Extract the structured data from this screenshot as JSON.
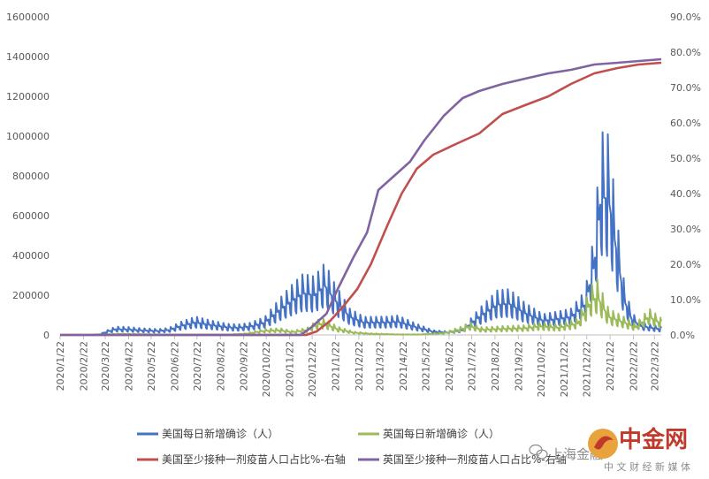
{
  "chart_data": {
    "type": "line",
    "title": "",
    "xlabel": "",
    "ylabel": "",
    "x_ticks": [
      "2020/1/22",
      "2020/2/22",
      "2020/3/22",
      "2020/4/22",
      "2020/5/22",
      "2020/6/22",
      "2020/7/22",
      "2020/8/22",
      "2020/9/22",
      "2020/10/22",
      "2020/11/22",
      "2020/12/22",
      "2021/1/22",
      "2021/2/22",
      "2021/3/22",
      "2021/4/22",
      "2021/5/22",
      "2021/6/22",
      "2021/7/22",
      "2021/8/22",
      "2021/9/22",
      "2021/10/22",
      "2021/11/22",
      "2021/12/22",
      "2022/1/22",
      "2022/2/22",
      "2022/3/22"
    ],
    "x_range": [
      "2020-01-22",
      "2022-03-31"
    ],
    "y_left": {
      "min": 0,
      "max": 1600000,
      "ticks": [
        "0",
        "200000",
        "400000",
        "600000",
        "800000",
        "1000000",
        "1200000",
        "1400000",
        "1600000"
      ]
    },
    "y_right": {
      "min": 0,
      "max": 90,
      "unit": "%",
      "ticks": [
        "0.0%",
        "10.0%",
        "20.0%",
        "30.0%",
        "40.0%",
        "50.0%",
        "60.0%",
        "70.0%",
        "80.0%",
        "90.0%"
      ]
    },
    "grid": false,
    "legend_position": "bottom",
    "series": [
      {
        "name": "美国每日新增确诊（人）",
        "axis": "left",
        "color": "#4472C4",
        "oscillation": "weekly",
        "points": [
          [
            "2020-01-22",
            0
          ],
          [
            "2020-03-01",
            0
          ],
          [
            "2020-03-15",
            3000
          ],
          [
            "2020-03-25",
            18000
          ],
          [
            "2020-04-05",
            30000
          ],
          [
            "2020-04-20",
            29000
          ],
          [
            "2020-05-10",
            24000
          ],
          [
            "2020-06-01",
            21000
          ],
          [
            "2020-06-15",
            26000
          ],
          [
            "2020-07-01",
            48000
          ],
          [
            "2020-07-20",
            66000
          ],
          [
            "2020-08-10",
            52000
          ],
          [
            "2020-09-01",
            40000
          ],
          [
            "2020-09-15",
            38000
          ],
          [
            "2020-10-01",
            44000
          ],
          [
            "2020-10-20",
            65000
          ],
          [
            "2020-11-10",
            135000
          ],
          [
            "2020-11-25",
            180000
          ],
          [
            "2020-12-10",
            220000
          ],
          [
            "2020-12-25",
            210000
          ],
          [
            "2021-01-08",
            260000
          ],
          [
            "2021-01-20",
            190000
          ],
          [
            "2021-02-10",
            95000
          ],
          [
            "2021-03-01",
            65000
          ],
          [
            "2021-04-01",
            66000
          ],
          [
            "2021-04-15",
            70000
          ],
          [
            "2021-05-10",
            40000
          ],
          [
            "2021-06-01",
            17000
          ],
          [
            "2021-06-20",
            13000
          ],
          [
            "2021-07-10",
            25000
          ],
          [
            "2021-08-01",
            95000
          ],
          [
            "2021-08-25",
            160000
          ],
          [
            "2021-09-10",
            165000
          ],
          [
            "2021-10-01",
            115000
          ],
          [
            "2021-10-25",
            75000
          ],
          [
            "2021-11-15",
            85000
          ],
          [
            "2021-12-01",
            95000
          ],
          [
            "2021-12-20",
            160000
          ],
          [
            "2022-01-01",
            370000
          ],
          [
            "2022-01-10",
            730000
          ],
          [
            "2022-01-20",
            720000
          ],
          [
            "2022-02-01",
            400000
          ],
          [
            "2022-02-10",
            180000
          ],
          [
            "2022-02-20",
            80000
          ],
          [
            "2022-03-05",
            45000
          ],
          [
            "2022-03-31",
            30000
          ]
        ]
      },
      {
        "name": "英国每日新增确诊（人）",
        "axis": "left",
        "color": "#9BBB59",
        "oscillation": "weekly",
        "points": [
          [
            "2020-01-22",
            0
          ],
          [
            "2020-03-01",
            0
          ],
          [
            "2020-04-10",
            5000
          ],
          [
            "2020-05-15",
            3000
          ],
          [
            "2020-07-01",
            800
          ],
          [
            "2020-09-01",
            1500
          ],
          [
            "2020-09-25",
            6000
          ],
          [
            "2020-10-20",
            22000
          ],
          [
            "2020-11-10",
            24000
          ],
          [
            "2020-11-25",
            15000
          ],
          [
            "2020-12-15",
            25000
          ],
          [
            "2020-12-29",
            55000
          ],
          [
            "2021-01-08",
            58000
          ],
          [
            "2021-01-25",
            30000
          ],
          [
            "2021-02-15",
            12000
          ],
          [
            "2021-03-10",
            6000
          ],
          [
            "2021-04-15",
            2500
          ],
          [
            "2021-05-15",
            2500
          ],
          [
            "2021-06-15",
            9000
          ],
          [
            "2021-07-10",
            32000
          ],
          [
            "2021-07-20",
            45000
          ],
          [
            "2021-08-05",
            27000
          ],
          [
            "2021-09-01",
            32000
          ],
          [
            "2021-10-01",
            35000
          ],
          [
            "2021-10-20",
            45000
          ],
          [
            "2021-11-15",
            38000
          ],
          [
            "2021-12-10",
            60000
          ],
          [
            "2021-12-29",
            180000
          ],
          [
            "2022-01-05",
            200000
          ],
          [
            "2022-01-20",
            95000
          ],
          [
            "2022-02-10",
            65000
          ],
          [
            "2022-02-25",
            40000
          ],
          [
            "2022-03-05",
            65000
          ],
          [
            "2022-03-15",
            95000
          ],
          [
            "2022-03-31",
            60000
          ]
        ]
      },
      {
        "name": "美国至少接种一剂疫苗人口占比%-右轴",
        "axis": "right",
        "color": "#C0504D",
        "points": [
          [
            "2020-01-22",
            0
          ],
          [
            "2020-12-14",
            0
          ],
          [
            "2020-12-28",
            1
          ],
          [
            "2021-01-15",
            4
          ],
          [
            "2021-02-01",
            8
          ],
          [
            "2021-02-20",
            13
          ],
          [
            "2021-03-10",
            20
          ],
          [
            "2021-04-01",
            31
          ],
          [
            "2021-04-20",
            40
          ],
          [
            "2021-05-10",
            47
          ],
          [
            "2021-06-01",
            51
          ],
          [
            "2021-07-01",
            54
          ],
          [
            "2021-08-01",
            57
          ],
          [
            "2021-09-01",
            62.5
          ],
          [
            "2021-10-01",
            65
          ],
          [
            "2021-11-01",
            67.5
          ],
          [
            "2021-12-01",
            71
          ],
          [
            "2022-01-01",
            74
          ],
          [
            "2022-02-01",
            75.5
          ],
          [
            "2022-03-01",
            76.5
          ],
          [
            "2022-03-31",
            77
          ]
        ]
      },
      {
        "name": "英国至少接种一剂疫苗人口占比%-右轴",
        "axis": "right",
        "color": "#8064A2",
        "points": [
          [
            "2020-01-22",
            0
          ],
          [
            "2020-12-07",
            0
          ],
          [
            "2020-12-20",
            2
          ],
          [
            "2021-01-10",
            6
          ],
          [
            "2021-01-25",
            13
          ],
          [
            "2021-02-15",
            22
          ],
          [
            "2021-03-05",
            29
          ],
          [
            "2021-03-20",
            41
          ],
          [
            "2021-04-10",
            45
          ],
          [
            "2021-05-01",
            49
          ],
          [
            "2021-05-20",
            55
          ],
          [
            "2021-06-15",
            62
          ],
          [
            "2021-07-10",
            67
          ],
          [
            "2021-08-01",
            69
          ],
          [
            "2021-09-01",
            71
          ],
          [
            "2021-10-01",
            72.5
          ],
          [
            "2021-11-01",
            74
          ],
          [
            "2021-12-01",
            75
          ],
          [
            "2022-01-01",
            76.5
          ],
          [
            "2022-02-01",
            77
          ],
          [
            "2022-03-31",
            78
          ]
        ]
      }
    ]
  },
  "watermark": {
    "channel_name": "上海金融",
    "logo_text": "中金网",
    "logo_subtitle": "中 文 财 经 新 媒 体",
    "colors": {
      "red": "#C0392B",
      "gold": "#E8A33D",
      "grey": "#8C8C8C"
    }
  }
}
